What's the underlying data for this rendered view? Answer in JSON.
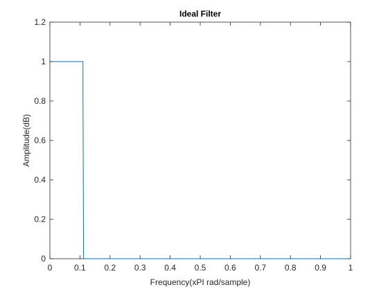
{
  "chart_data": {
    "type": "line",
    "title": "Ideal Filter",
    "xlabel": "Frequency(xPI rad/sample)",
    "ylabel": "Amplitude(dB)",
    "xlim": [
      0,
      1
    ],
    "ylim": [
      0,
      1.2
    ],
    "xticks": [
      0,
      0.1,
      0.2,
      0.3,
      0.4,
      0.5,
      0.6,
      0.7,
      0.8,
      0.9,
      1
    ],
    "xtick_labels": [
      "0",
      "0.1",
      "0.2",
      "0.3",
      "0.4",
      "0.5",
      "0.6",
      "0.7",
      "0.8",
      "0.9",
      "1"
    ],
    "yticks": [
      0,
      0.2,
      0.4,
      0.6,
      0.8,
      1,
      1.2
    ],
    "ytick_labels": [
      "0",
      "0.2",
      "0.4",
      "0.6",
      "0.8",
      "1",
      "1.2"
    ],
    "grid": false,
    "series": [
      {
        "color": "#0072BD",
        "x": [
          0,
          0.11,
          0.11,
          0.112,
          1
        ],
        "y": [
          1,
          1,
          0.85,
          0,
          0
        ]
      }
    ]
  }
}
